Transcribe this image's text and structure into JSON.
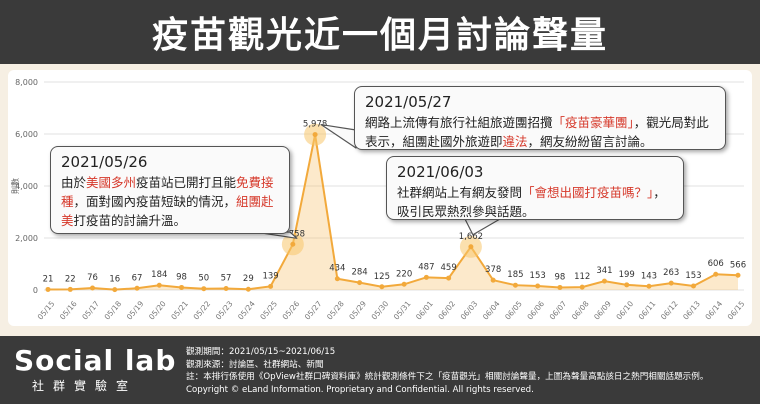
{
  "header": {
    "title": "疫苗觀光近一個月討論聲量"
  },
  "chart_data": {
    "type": "area",
    "ylabel": "則數",
    "ylim": [
      0,
      8000
    ],
    "y_ticks": [
      "0",
      "2,000",
      "4,000",
      "6,000",
      "8,000"
    ],
    "grid": true,
    "accent_color": "#f5c06b",
    "categories": [
      "05/15",
      "05/16",
      "05/17",
      "05/18",
      "05/19",
      "05/20",
      "05/21",
      "05/22",
      "05/23",
      "05/24",
      "05/25",
      "05/26",
      "05/27",
      "05/28",
      "05/29",
      "05/30",
      "05/31",
      "06/01",
      "06/02",
      "06/03",
      "06/04",
      "06/05",
      "06/06",
      "06/07",
      "06/08",
      "06/09",
      "06/10",
      "06/11",
      "06/12",
      "06/13",
      "06/14",
      "06/15"
    ],
    "values": [
      21,
      22,
      76,
      16,
      67,
      184,
      98,
      50,
      57,
      29,
      139,
      1758,
      5978,
      434,
      284,
      125,
      220,
      487,
      459,
      1662,
      378,
      185,
      153,
      98,
      112,
      341,
      199,
      143,
      263,
      153,
      606,
      566
    ],
    "value_labels": [
      "21",
      "22",
      "76",
      "16",
      "67",
      "184",
      "98",
      "50",
      "57",
      "29",
      "139",
      "1,758",
      "5,978",
      "434",
      "284",
      "125",
      "220",
      "487",
      "459",
      "1,662",
      "378",
      "185",
      "153",
      "98",
      "112",
      "341",
      "199",
      "143",
      "263",
      "153",
      "606",
      "566"
    ],
    "highlights": [
      "05/26",
      "05/27",
      "06/03"
    ]
  },
  "callouts": [
    {
      "date": "2021/05/26",
      "parts": [
        {
          "text": "由於",
          "hl": false
        },
        {
          "text": "美國多州",
          "hl": true
        },
        {
          "text": "疫苗站已開打且能",
          "hl": false
        },
        {
          "text": "免費接種",
          "hl": true
        },
        {
          "text": "，面對國內疫苗短缺的情況，",
          "hl": false
        },
        {
          "text": "組團赴美",
          "hl": true
        },
        {
          "text": "打疫苗的討論升溫。",
          "hl": false
        }
      ]
    },
    {
      "date": "2021/05/27",
      "parts": [
        {
          "text": "網路上流傳有旅行社組旅遊團招攬",
          "hl": false
        },
        {
          "text": "「疫苗豪華團」",
          "hl": true
        },
        {
          "text": "，觀光局對此表示，組團赴國外旅遊即",
          "hl": false
        },
        {
          "text": "違法",
          "hl": true
        },
        {
          "text": "，網友紛紛留言討論。",
          "hl": false
        }
      ]
    },
    {
      "date": "2021/06/03",
      "parts": [
        {
          "text": "社群網站上有網友發問",
          "hl": false
        },
        {
          "text": "「會想出國打疫苗嗎？」",
          "hl": true
        },
        {
          "text": "，吸引民眾熱烈參與話題。",
          "hl": false
        }
      ]
    }
  ],
  "footer": {
    "brand": "Social lab",
    "brand_sub": "社群實驗室",
    "notes": [
      "觀測期間：2021/05/15~2021/06/15",
      "觀測來源：討論區、社群網站、新聞",
      "註：本排行係使用《OpView社群口碑資料庫》統計觀測條件下之「疫苗觀光」相關討論聲量，上圖為聲量高點該日之熱門相關話題示例。",
      "Copyright © eLand Information. Proprietary and Confidential. All rights reserved."
    ]
  }
}
